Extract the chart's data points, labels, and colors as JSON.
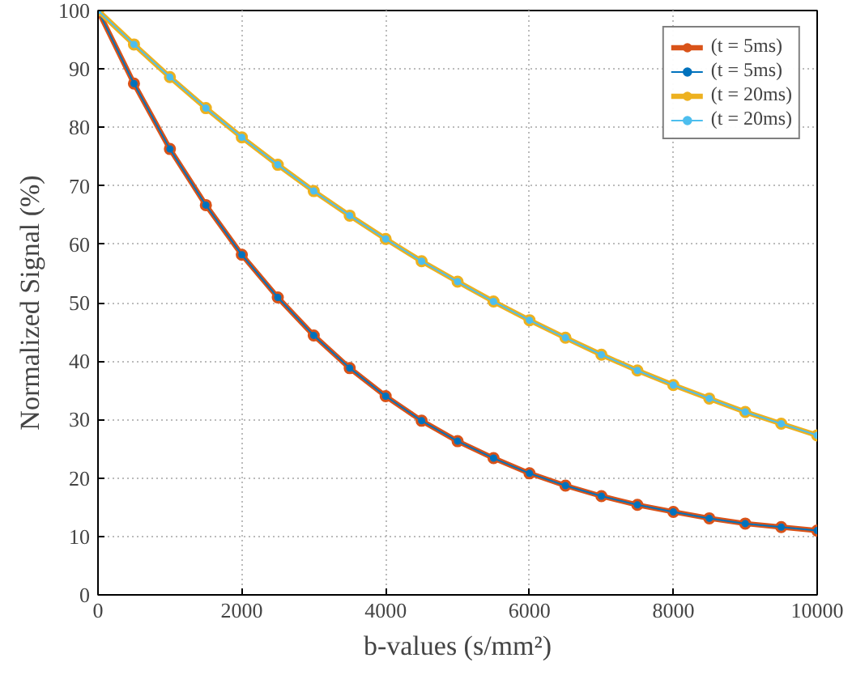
{
  "chart_data": {
    "type": "line",
    "xlabel": "b-values (s/mm²)",
    "ylabel": "Normalized Signal (%)",
    "x": [
      0,
      500,
      1000,
      1500,
      2000,
      2500,
      3000,
      3500,
      4000,
      4500,
      5000,
      5500,
      6000,
      6500,
      7000,
      7500,
      8000,
      8500,
      9000,
      9500,
      10000
    ],
    "series": [
      {
        "name": "(t = 5ms)",
        "color": "#d95319",
        "values": [
          100,
          87.5,
          76.3,
          66.7,
          58.2,
          50.9,
          44.4,
          38.8,
          34.0,
          29.8,
          26.3,
          23.4,
          20.8,
          18.7,
          16.9,
          15.4,
          14.2,
          13.1,
          12.2,
          11.6,
          11.0
        ]
      },
      {
        "name": "(t = 5ms)",
        "color": "#0072bd",
        "values": [
          100,
          87.5,
          76.3,
          66.7,
          58.2,
          50.9,
          44.4,
          38.8,
          34.0,
          29.8,
          26.3,
          23.4,
          20.8,
          18.7,
          16.9,
          15.4,
          14.2,
          13.1,
          12.2,
          11.6,
          11.0
        ]
      },
      {
        "name": "(t = 20ms)",
        "color": "#edb120",
        "values": [
          100,
          94.2,
          88.6,
          83.3,
          78.3,
          73.6,
          69.1,
          64.9,
          60.9,
          57.1,
          53.6,
          50.2,
          47.0,
          44.0,
          41.1,
          38.4,
          35.9,
          33.6,
          31.3,
          29.3,
          27.3
        ]
      },
      {
        "name": "(t = 20ms)",
        "color": "#4dbeee",
        "values": [
          100,
          94.2,
          88.6,
          83.3,
          78.3,
          73.6,
          69.1,
          64.9,
          60.9,
          57.1,
          53.6,
          50.2,
          47.0,
          44.0,
          41.1,
          38.4,
          35.9,
          33.6,
          31.3,
          29.3,
          27.3
        ]
      }
    ],
    "xlim": [
      0,
      10000
    ],
    "xticks": [
      0,
      2000,
      4000,
      6000,
      8000,
      10000
    ],
    "ylim": [
      0,
      100
    ],
    "yticks": [
      0,
      10,
      20,
      30,
      40,
      50,
      60,
      70,
      80,
      90,
      100
    ],
    "grid": true,
    "legend": "top right",
    "marker": "circle",
    "line_style": "solid"
  }
}
